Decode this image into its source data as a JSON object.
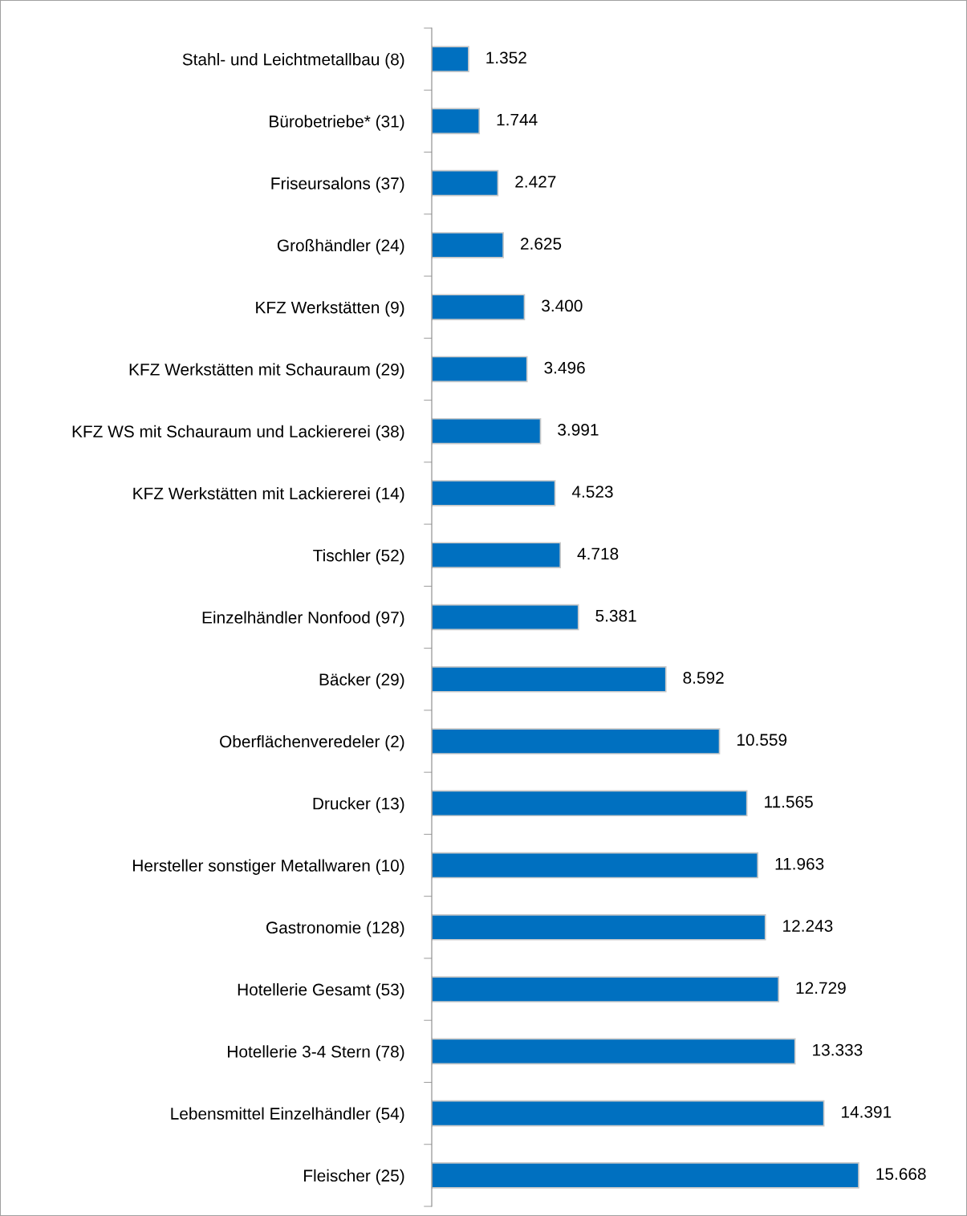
{
  "chart_data": {
    "type": "bar",
    "orientation": "horizontal",
    "categories": [
      "Stahl- und Leichtmetallbau (8)",
      "Bürobetriebe* (31)",
      "Friseursalons (37)",
      "Großhändler (24)",
      "KFZ Werkstätten (9)",
      "KFZ Werkstätten mit Schauraum (29)",
      "KFZ WS mit Schauraum und Lackiererei (38)",
      "KFZ Werkstätten mit Lackiererei (14)",
      "Tischler (52)",
      "Einzelhändler Nonfood (97)",
      "Bäcker (29)",
      "Oberflächenveredeler (2)",
      "Drucker (13)",
      "Hersteller sonstiger Metallwaren (10)",
      "Gastronomie (128)",
      "Hotellerie Gesamt (53)",
      "Hotellerie 3-4 Stern (78)",
      "Lebensmittel Einzelhändler (54)",
      "Fleischer (25)"
    ],
    "values": [
      1352,
      1744,
      2427,
      2625,
      3400,
      3496,
      3991,
      4523,
      4718,
      5381,
      8592,
      10559,
      11565,
      11963,
      12243,
      12729,
      13333,
      14391,
      15668
    ],
    "value_labels": [
      "1.352",
      "1.744",
      "2.427",
      "2.625",
      "3.400",
      "3.496",
      "3.991",
      "4.523",
      "4.718",
      "5.381",
      "8.592",
      "10.559",
      "11.565",
      "11.963",
      "12.243",
      "12.729",
      "13.333",
      "14.391",
      "15.668"
    ],
    "color": "#0070c0",
    "grid": false,
    "legend": false
  }
}
